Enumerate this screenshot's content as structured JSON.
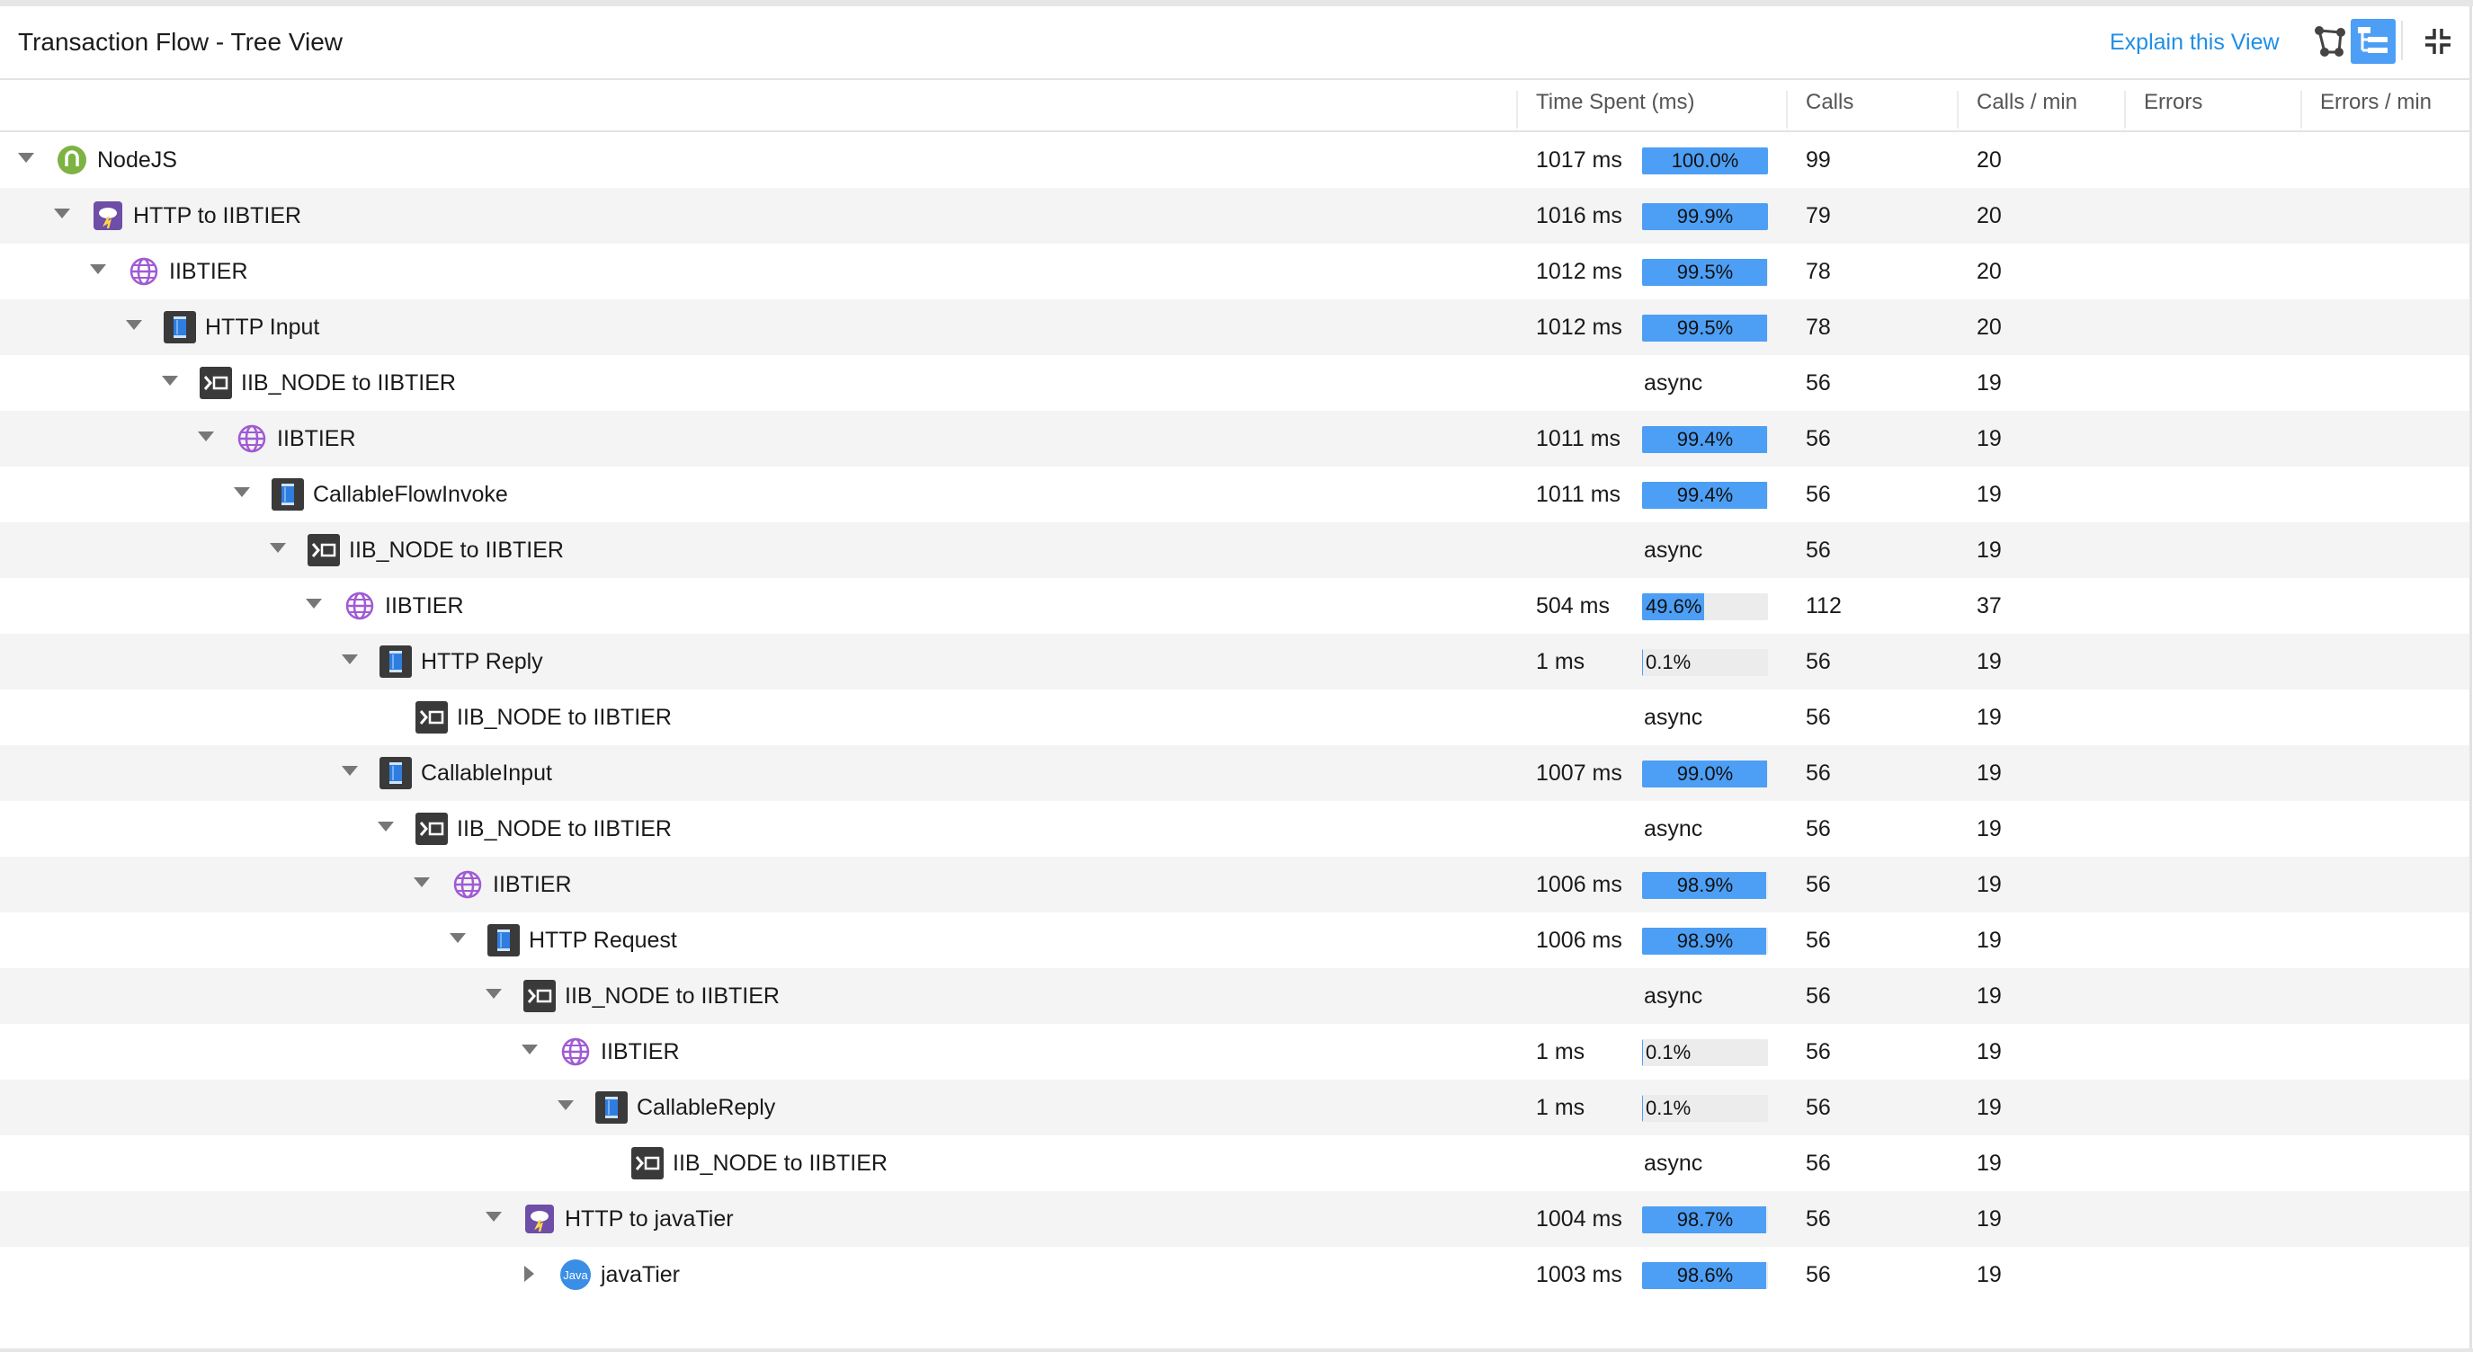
{
  "panel": {
    "title": "Transaction Flow - Tree View",
    "explain_link": "Explain this View",
    "toolbar": {
      "graph_icon": "graph-view-icon",
      "tree_icon": "tree-view-icon",
      "collapse_icon": "collapse-icon"
    }
  },
  "columns": [
    "Time Spent (ms)",
    "Calls",
    "Calls / min",
    "Errors",
    "Errors / min"
  ],
  "colors": {
    "accent": "#1f8fe6",
    "bar": "#4d9ff5",
    "row_alt": "#f4f4f4",
    "nodejs": "#7cb342",
    "http_exit": "#6e4ea6",
    "tier": "#a05ad4",
    "java": "#3a8ee6"
  },
  "rows": [
    {
      "depth": 0,
      "caret": "down",
      "icon": "nodejs",
      "label": "NodeJS",
      "time": "1017 ms",
      "pct": "100.0%",
      "pct_value": 100.0,
      "calls": "99",
      "calls_min": "20",
      "errors": "",
      "errors_min": ""
    },
    {
      "depth": 1,
      "caret": "down",
      "icon": "http",
      "label": "HTTP to IIBTIER",
      "time": "1016 ms",
      "pct": "99.9%",
      "pct_value": 99.9,
      "calls": "79",
      "calls_min": "20",
      "errors": "",
      "errors_min": ""
    },
    {
      "depth": 2,
      "caret": "down",
      "icon": "tier",
      "label": "IIBTIER",
      "time": "1012 ms",
      "pct": "99.5%",
      "pct_value": 99.5,
      "calls": "78",
      "calls_min": "20",
      "errors": "",
      "errors_min": ""
    },
    {
      "depth": 3,
      "caret": "down",
      "icon": "node",
      "label": "HTTP Input",
      "time": "1012 ms",
      "pct": "99.5%",
      "pct_value": 99.5,
      "calls": "78",
      "calls_min": "20",
      "errors": "",
      "errors_min": ""
    },
    {
      "depth": 4,
      "caret": "down",
      "icon": "exit",
      "label": "IIB_NODE to IIBTIER",
      "time": "",
      "pct": "async",
      "pct_value": null,
      "calls": "56",
      "calls_min": "19",
      "errors": "",
      "errors_min": ""
    },
    {
      "depth": 5,
      "caret": "down",
      "icon": "tier",
      "label": "IIBTIER",
      "time": "1011 ms",
      "pct": "99.4%",
      "pct_value": 99.4,
      "calls": "56",
      "calls_min": "19",
      "errors": "",
      "errors_min": ""
    },
    {
      "depth": 6,
      "caret": "down",
      "icon": "node",
      "label": "CallableFlowInvoke",
      "time": "1011 ms",
      "pct": "99.4%",
      "pct_value": 99.4,
      "calls": "56",
      "calls_min": "19",
      "errors": "",
      "errors_min": ""
    },
    {
      "depth": 7,
      "caret": "down",
      "icon": "exit",
      "label": "IIB_NODE to IIBTIER",
      "time": "",
      "pct": "async",
      "pct_value": null,
      "calls": "56",
      "calls_min": "19",
      "errors": "",
      "errors_min": ""
    },
    {
      "depth": 8,
      "caret": "down",
      "icon": "tier",
      "label": "IIBTIER",
      "time": "504 ms",
      "pct": "49.6%",
      "pct_value": 49.6,
      "calls": "112",
      "calls_min": "37",
      "errors": "",
      "errors_min": ""
    },
    {
      "depth": 9,
      "caret": "down",
      "icon": "node",
      "label": "HTTP Reply",
      "time": "1 ms",
      "pct": "0.1%",
      "pct_value": 0.1,
      "calls": "56",
      "calls_min": "19",
      "errors": "",
      "errors_min": ""
    },
    {
      "depth": 10,
      "caret": "none",
      "icon": "exit",
      "label": "IIB_NODE to IIBTIER",
      "time": "",
      "pct": "async",
      "pct_value": null,
      "calls": "56",
      "calls_min": "19",
      "errors": "",
      "errors_min": ""
    },
    {
      "depth": 9,
      "caret": "down",
      "icon": "node",
      "label": "CallableInput",
      "time": "1007 ms",
      "pct": "99.0%",
      "pct_value": 99.0,
      "calls": "56",
      "calls_min": "19",
      "errors": "",
      "errors_min": ""
    },
    {
      "depth": 10,
      "caret": "down",
      "icon": "exit",
      "label": "IIB_NODE to IIBTIER",
      "time": "",
      "pct": "async",
      "pct_value": null,
      "calls": "56",
      "calls_min": "19",
      "errors": "",
      "errors_min": ""
    },
    {
      "depth": 11,
      "caret": "down",
      "icon": "tier",
      "label": "IIBTIER",
      "time": "1006 ms",
      "pct": "98.9%",
      "pct_value": 98.9,
      "calls": "56",
      "calls_min": "19",
      "errors": "",
      "errors_min": ""
    },
    {
      "depth": 12,
      "caret": "down",
      "icon": "node",
      "label": "HTTP Request",
      "time": "1006 ms",
      "pct": "98.9%",
      "pct_value": 98.9,
      "calls": "56",
      "calls_min": "19",
      "errors": "",
      "errors_min": ""
    },
    {
      "depth": 13,
      "caret": "down",
      "icon": "exit",
      "label": "IIB_NODE to IIBTIER",
      "time": "",
      "pct": "async",
      "pct_value": null,
      "calls": "56",
      "calls_min": "19",
      "errors": "",
      "errors_min": ""
    },
    {
      "depth": 14,
      "caret": "down",
      "icon": "tier",
      "label": "IIBTIER",
      "time": "1 ms",
      "pct": "0.1%",
      "pct_value": 0.1,
      "calls": "56",
      "calls_min": "19",
      "errors": "",
      "errors_min": ""
    },
    {
      "depth": 15,
      "caret": "down",
      "icon": "node",
      "label": "CallableReply",
      "time": "1 ms",
      "pct": "0.1%",
      "pct_value": 0.1,
      "calls": "56",
      "calls_min": "19",
      "errors": "",
      "errors_min": ""
    },
    {
      "depth": 16,
      "caret": "none",
      "icon": "exit",
      "label": "IIB_NODE to IIBTIER",
      "time": "",
      "pct": "async",
      "pct_value": null,
      "calls": "56",
      "calls_min": "19",
      "errors": "",
      "errors_min": ""
    },
    {
      "depth": 13,
      "caret": "down",
      "icon": "http",
      "label": "HTTP to javaTier",
      "time": "1004 ms",
      "pct": "98.7%",
      "pct_value": 98.7,
      "calls": "56",
      "calls_min": "19",
      "errors": "",
      "errors_min": ""
    },
    {
      "depth": 14,
      "caret": "right",
      "icon": "java",
      "label": "javaTier",
      "time": "1003 ms",
      "pct": "98.6%",
      "pct_value": 98.6,
      "calls": "56",
      "calls_min": "19",
      "errors": "",
      "errors_min": ""
    }
  ]
}
